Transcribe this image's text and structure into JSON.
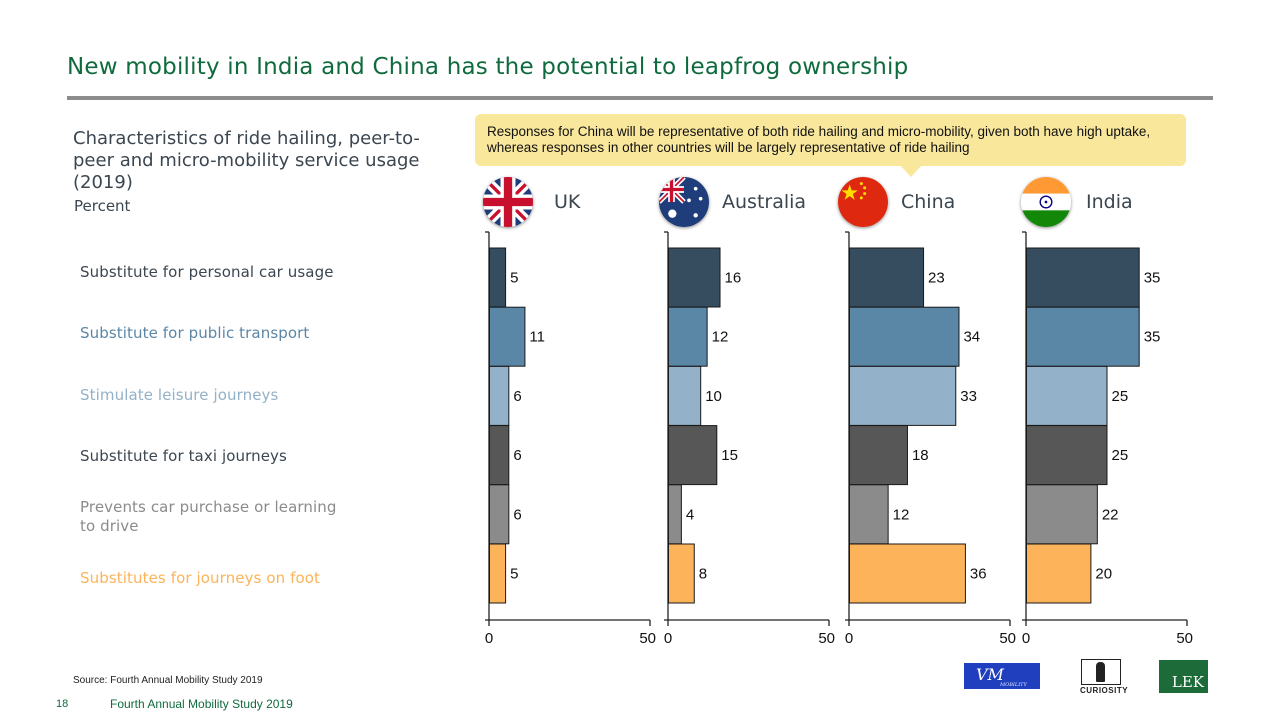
{
  "slide": {
    "title": "New mobility in India and China has the potential to leapfrog ownership",
    "page_number": "18",
    "footer_title": "Fourth Annual Mobility Study 2019",
    "source": "Source:  Fourth Annual Mobility Study 2019"
  },
  "callout": {
    "text": "Responses for China will be representative of both ride hailing and micro-mobility, given both have high uptake, whereas responses in other countries will be largely representative of ride hailing"
  },
  "logos": {
    "vm": "VM",
    "vm_sub": "MOBILITY",
    "curiosity": "CURIOSITY",
    "lek": "LEK"
  },
  "chart_data": {
    "type": "bar",
    "orientation": "horizontal",
    "title": "Characteristics of ride hailing, peer-to-peer and micro-mobility service usage (2019)",
    "unit": "Percent",
    "categories": [
      "Substitute for personal car usage",
      "Substitute for public transport",
      "Stimulate leisure journeys",
      "Substitute for taxi journeys",
      "Prevents car purchase or learning to drive",
      "Substitutes for journeys on foot"
    ],
    "category_colors": [
      "#354d5f",
      "#5b87a6",
      "#93b1c8",
      "#575757",
      "#8b8b8b",
      "#fcb359"
    ],
    "category_label_colors": [
      "#3b4650",
      "#5b87a6",
      "#93b1c8",
      "#3b4650",
      "#8b8b8b",
      "#fcb359"
    ],
    "xlim": [
      0,
      50
    ],
    "x_ticks": [
      0,
      50
    ],
    "series": [
      {
        "name": "UK",
        "values": [
          5,
          11,
          6,
          6,
          6,
          5
        ]
      },
      {
        "name": "Australia",
        "values": [
          16,
          12,
          10,
          15,
          4,
          8
        ]
      },
      {
        "name": "China",
        "values": [
          23,
          34,
          33,
          18,
          12,
          36
        ]
      },
      {
        "name": "India",
        "values": [
          35,
          35,
          25,
          25,
          22,
          20
        ]
      }
    ]
  }
}
